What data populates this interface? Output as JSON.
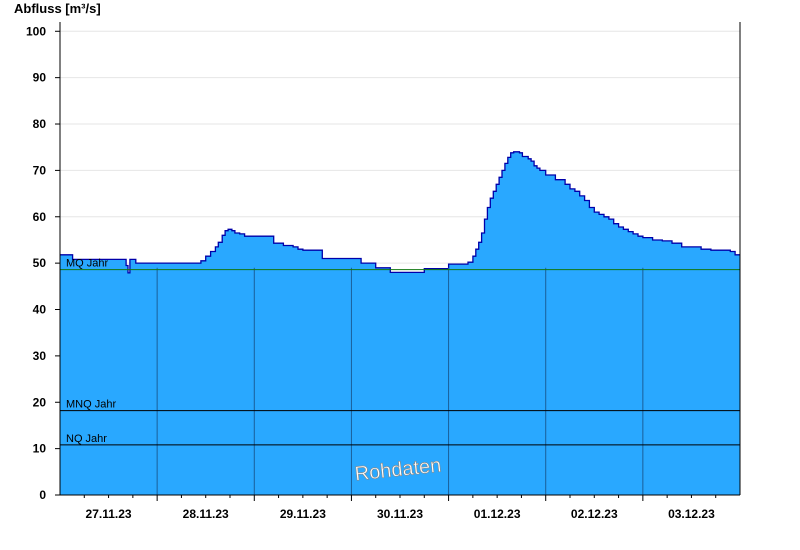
{
  "chart_data": {
    "type": "area",
    "ylabel": "Abfluss [m³/s]",
    "watermark": "Rohdaten",
    "ylim": [
      0,
      102
    ],
    "xlim": [
      0,
      7
    ],
    "yticks": [
      0,
      10,
      20,
      30,
      40,
      50,
      60,
      70,
      80,
      90,
      100
    ],
    "categories": [
      "27.11.23",
      "28.11.23",
      "29.11.23",
      "30.11.23",
      "01.12.23",
      "02.12.23",
      "03.12.23"
    ],
    "grid": true,
    "colors": {
      "fill": "#29a8ff",
      "line": "#0000aa",
      "mq": "#117711",
      "ref": "#000000"
    },
    "reference_lines": [
      {
        "label": "MQ Jahr",
        "value": 48.6
      },
      {
        "label": "MNQ Jahr",
        "value": 18.2
      },
      {
        "label": "NQ Jahr",
        "value": 10.8
      }
    ],
    "series": [
      {
        "x": [
          0,
          0.12,
          0.13,
          0.66,
          0.68,
          0.7,
          0.72,
          0.75,
          0.78,
          0.9,
          1.4,
          1.45,
          1.5,
          1.55,
          1.6,
          1.63,
          1.67,
          1.7,
          1.73,
          1.77,
          1.8,
          1.85,
          1.9,
          2.0,
          2.2,
          2.3,
          2.4,
          2.45,
          2.5,
          2.7,
          3.1,
          3.25,
          3.4,
          3.72,
          3.75,
          4.0,
          4.2,
          4.25,
          4.28,
          4.31,
          4.34,
          4.37,
          4.4,
          4.43,
          4.46,
          4.49,
          4.52,
          4.55,
          4.58,
          4.61,
          4.64,
          4.67,
          4.7,
          4.73,
          4.76,
          4.79,
          4.82,
          4.85,
          4.88,
          4.91,
          4.94,
          5.0,
          5.1,
          5.2,
          5.25,
          5.3,
          5.35,
          5.4,
          5.45,
          5.5,
          5.55,
          5.6,
          5.65,
          5.7,
          5.75,
          5.8,
          5.85,
          5.9,
          5.95,
          6.0,
          6.1,
          6.2,
          6.3,
          6.4,
          6.6,
          6.7,
          6.9,
          6.95,
          7.0
        ],
        "y": [
          51.8,
          51.8,
          50.8,
          50.8,
          49.5,
          47.9,
          50.8,
          50.8,
          50.0,
          50.0,
          50.0,
          50.5,
          51.5,
          52.5,
          53.5,
          54.5,
          56.0,
          57.0,
          57.3,
          57.0,
          56.5,
          56.3,
          55.8,
          55.8,
          54.3,
          53.8,
          53.5,
          53.0,
          52.8,
          51.0,
          50.0,
          49.0,
          48.0,
          48.0,
          48.8,
          49.8,
          50.2,
          51.5,
          53.0,
          54.5,
          56.5,
          59.5,
          62.0,
          64.0,
          65.5,
          67.0,
          68.5,
          70.0,
          71.5,
          72.8,
          73.8,
          74.0,
          74.0,
          73.8,
          73.0,
          73.0,
          72.5,
          72.0,
          71.0,
          70.5,
          70.0,
          69.0,
          68.0,
          67.0,
          66.0,
          65.5,
          64.5,
          63.5,
          62.0,
          61.0,
          60.5,
          60.0,
          59.5,
          58.5,
          57.8,
          57.3,
          56.8,
          56.3,
          55.8,
          55.5,
          55.0,
          54.8,
          54.3,
          53.5,
          53.0,
          52.8,
          52.5,
          51.8,
          51.8
        ]
      }
    ]
  }
}
